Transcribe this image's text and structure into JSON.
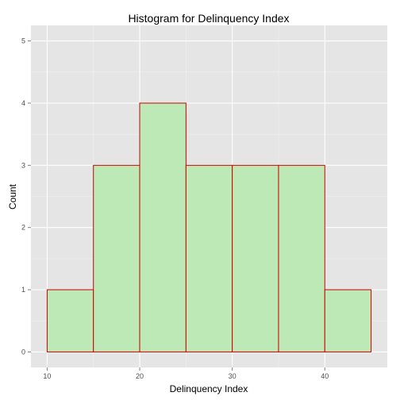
{
  "chart_data": {
    "type": "bar",
    "title": "Histogram for Delinquency Index",
    "xlabel": "Delinquency Index",
    "ylabel": "Count",
    "bins": [
      {
        "start": 10,
        "end": 15,
        "count": 1
      },
      {
        "start": 15,
        "end": 20,
        "count": 3
      },
      {
        "start": 20,
        "end": 25,
        "count": 4
      },
      {
        "start": 25,
        "end": 30,
        "count": 3
      },
      {
        "start": 30,
        "end": 35,
        "count": 3
      },
      {
        "start": 35,
        "end": 40,
        "count": 3
      },
      {
        "start": 40,
        "end": 45,
        "count": 1
      }
    ],
    "xlim": [
      8.25,
      46.75
    ],
    "ylim": [
      -0.25,
      5.25
    ],
    "x_ticks": [
      10,
      20,
      30,
      40
    ],
    "y_ticks": [
      0,
      1,
      2,
      3,
      4,
      5
    ],
    "grid": true,
    "legend": "none",
    "colors": {
      "panel_background": "#e5e5e5",
      "grid_major": "#ffffff",
      "grid_minor": "#f2f2f2",
      "bar_fill": "#bce9b6",
      "bar_stroke": "#cc0000",
      "tick_text": "#4d4d4d",
      "tick_mark": "#7f7f7f"
    }
  }
}
